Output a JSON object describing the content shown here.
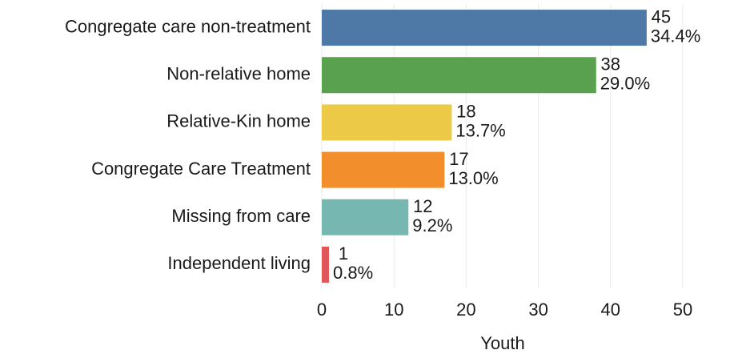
{
  "chart_data": {
    "type": "hbar",
    "categories": [
      "Congregate care non-treatment",
      "Non-relative home",
      "Relative-Kin home",
      "Congregate Care Treatment",
      "Missing from care",
      "Independent living"
    ],
    "values": [
      45,
      38,
      18,
      17,
      12,
      1
    ],
    "shares": [
      34.4,
      29.0,
      13.7,
      13.0,
      9.2,
      0.8
    ],
    "share_labels": [
      "34.4%",
      "29.0%",
      "13.7%",
      "13.0%",
      "9.2%",
      "0.8%"
    ],
    "colors": [
      "#4e79a7",
      "#59a14f",
      "#edc948",
      "#f28e2b",
      "#76b7b2",
      "#e15759"
    ],
    "xlabel": "Youth",
    "xlim": [
      0,
      57
    ],
    "xticks": [
      0,
      10,
      20,
      30,
      40,
      50
    ],
    "grid": true
  }
}
